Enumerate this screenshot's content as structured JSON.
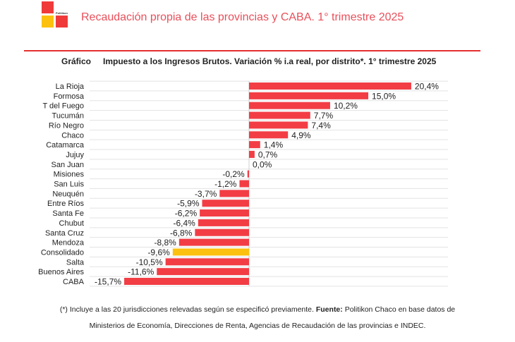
{
  "header": {
    "brand": "Politikon",
    "title": "Recaudación propia de las provincias y CABA. 1° trimestre 2025"
  },
  "chart_data": {
    "type": "bar",
    "orientation": "horizontal",
    "label": "Gráfico",
    "title": "Impuesto a los Ingresos Brutos. Variación % i.a real, por distrito*. 1° trimestre 2025",
    "xlabel": "",
    "ylabel": "",
    "categories": [
      "La Rioja",
      "Formosa",
      "T del Fuego",
      "Tucumán",
      "Río Negro",
      "Chaco",
      "Catamarca",
      "Jujuy",
      "San Juan",
      "Misiones",
      "San Luis",
      "Neuquén",
      "Entre Ríos",
      "Santa Fe",
      "Chubut",
      "Santa Cruz",
      "Mendoza",
      "Consolidado",
      "Salta",
      "Buenos Aires",
      "CABA"
    ],
    "values": [
      20.4,
      15.0,
      10.2,
      7.7,
      7.4,
      4.9,
      1.4,
      0.7,
      0.0,
      -0.2,
      -1.2,
      -3.7,
      -5.9,
      -6.2,
      -6.4,
      -6.8,
      -8.8,
      -9.6,
      -10.5,
      -11.6,
      -15.7
    ],
    "value_labels": [
      "20,4%",
      "15,0%",
      "10,2%",
      "7,7%",
      "7,4%",
      "4,9%",
      "1,4%",
      "0,7%",
      "0,0%",
      "-0,2%",
      "-1,2%",
      "-3,7%",
      "-5,9%",
      "-6,2%",
      "-6,4%",
      "-6,8%",
      "-8,8%",
      "-9,6%",
      "-10,5%",
      "-11,6%",
      "-15,7%"
    ],
    "highlight": "Consolidado",
    "colors": {
      "default": "#f23d45",
      "highlight": "#fcc10e"
    },
    "xlim": [
      -15.7,
      25
    ],
    "grid": true,
    "legend": "none"
  },
  "footnote": {
    "line1_prefix": "(*) Incluye a las 20 jurisdicciones relevadas según se especificó previamente.",
    "source_label": "Fuente:",
    "line1_suffix": "Politikon Chaco en base datos de",
    "line2": "Ministerios de Economía, Direcciones de Renta, Agencias de Recaudación de las provincias e INDEC."
  }
}
